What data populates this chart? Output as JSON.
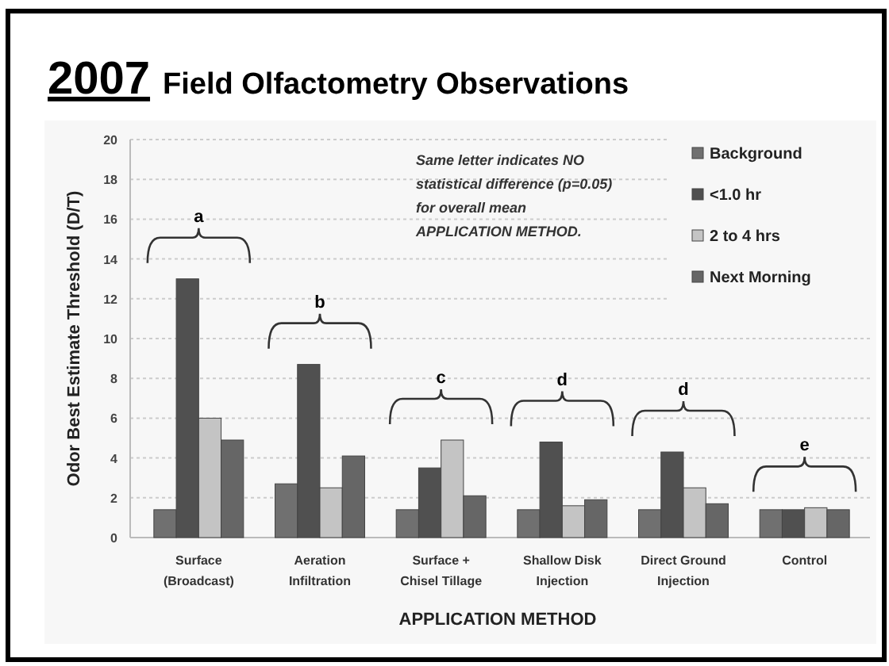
{
  "chart_data": {
    "type": "bar",
    "title": "2007 Field Olfactometry Observations",
    "xlabel": "APPLICATION METHOD",
    "ylabel": "Odor Best Estimate Threshold (D/T)",
    "categories": [
      "Surface (Broadcast)",
      "Aeration Infiltration",
      "Surface + Chisel Tillage",
      "Shallow Disk Injection",
      "Direct Ground Injection",
      "Control"
    ],
    "series": [
      {
        "name": "Background",
        "color": "#707070",
        "values": [
          1.4,
          2.7,
          1.4,
          1.4,
          1.4,
          1.4
        ]
      },
      {
        "name": "<1.0 hr",
        "color": "#505050",
        "values": [
          13.0,
          8.7,
          3.5,
          4.8,
          4.3,
          1.4
        ]
      },
      {
        "name": "2 to 4 hrs",
        "color": "#c4c4c4",
        "values": [
          6.0,
          2.5,
          4.9,
          1.6,
          2.5,
          1.5
        ]
      },
      {
        "name": "Next Morning",
        "color": "#666666",
        "values": [
          4.9,
          4.1,
          2.1,
          1.9,
          1.7,
          1.4
        ]
      }
    ],
    "ylim": [
      0,
      20
    ],
    "yticks": [
      0,
      2,
      4,
      6,
      8,
      10,
      12,
      14,
      16,
      18,
      20
    ],
    "grid": "y",
    "legend": "top right",
    "annotations": [
      "Same letter indicates NO statistical difference (p=0.05) for overall mean APPLICATION METHOD.",
      "a",
      "b",
      "c",
      "d",
      "d",
      "e"
    ]
  }
}
